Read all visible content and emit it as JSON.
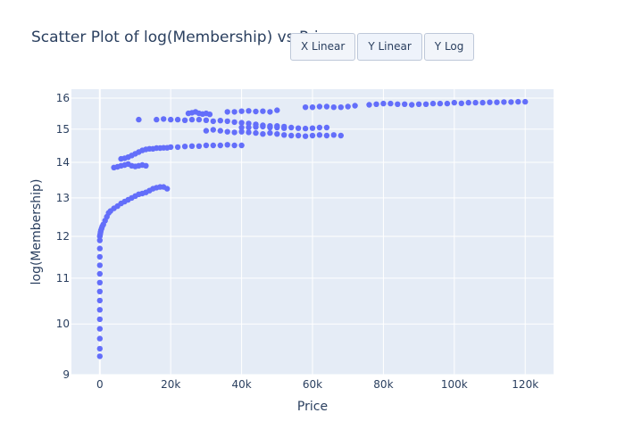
{
  "buttons": [
    {
      "label": "X Linear"
    },
    {
      "label": "Y Linear"
    },
    {
      "label": "Y Log"
    }
  ],
  "colors": {
    "plot_bg": "#e5ecf6",
    "grid": "#ffffff",
    "marker": "#636efa",
    "text": "#2a3f5f"
  },
  "chart_data": {
    "type": "scatter",
    "title": "Scatter Plot of log(Membership) vs Price",
    "xlabel": "Price",
    "ylabel": "log(Membership)",
    "xlim": [
      -8000,
      128000
    ],
    "ylim": [
      9,
      16.3
    ],
    "y_scale": "log",
    "grid": true,
    "x_ticks": [
      {
        "value": 0,
        "label": "0"
      },
      {
        "value": 20000,
        "label": "20k"
      },
      {
        "value": 40000,
        "label": "40k"
      },
      {
        "value": 60000,
        "label": "60k"
      },
      {
        "value": 80000,
        "label": "80k"
      },
      {
        "value": 100000,
        "label": "100k"
      },
      {
        "value": 120000,
        "label": "120k"
      }
    ],
    "y_ticks": [
      {
        "value": 9,
        "label": "9"
      },
      {
        "value": 10,
        "label": "10"
      },
      {
        "value": 11,
        "label": "11"
      },
      {
        "value": 12,
        "label": "12"
      },
      {
        "value": 13,
        "label": "13"
      },
      {
        "value": 14,
        "label": "14"
      },
      {
        "value": 15,
        "label": "15"
      },
      {
        "value": 16,
        "label": "16"
      }
    ],
    "series": [
      {
        "values_note": "",
        "x": [
          0,
          0,
          0,
          0,
          0,
          0,
          0,
          0,
          0,
          0,
          0,
          0,
          0,
          0,
          0,
          100,
          200,
          300,
          500,
          700,
          1000,
          1500,
          2000,
          2500,
          3000,
          4000,
          5000,
          6000,
          7000,
          8000,
          9000,
          10000,
          11000,
          12000,
          13000,
          14000,
          15000,
          16000,
          17000,
          18000,
          19000,
          4000,
          5000,
          6000,
          7000,
          8000,
          9000,
          10000,
          11000,
          12000,
          13000,
          6000,
          7000,
          8000,
          9000,
          10000,
          11000,
          12000,
          13000,
          14000,
          15000,
          16000,
          17000,
          18000,
          19000,
          20000,
          22000,
          24000,
          26000,
          28000,
          30000,
          32000,
          34000,
          36000,
          38000,
          40000,
          11000,
          16000,
          18000,
          20000,
          22000,
          24000,
          26000,
          28000,
          30000,
          32000,
          34000,
          36000,
          38000,
          40000,
          42000,
          44000,
          46000,
          48000,
          50000,
          52000,
          25000,
          26000,
          27000,
          28000,
          29000,
          30000,
          31000,
          36000,
          38000,
          40000,
          42000,
          44000,
          46000,
          48000,
          50000,
          30000,
          32000,
          34000,
          36000,
          38000,
          40000,
          42000,
          44000,
          46000,
          48000,
          50000,
          52000,
          54000,
          56000,
          58000,
          60000,
          62000,
          64000,
          66000,
          68000,
          40000,
          42000,
          44000,
          46000,
          48000,
          50000,
          52000,
          54000,
          56000,
          58000,
          60000,
          62000,
          64000,
          58000,
          60000,
          62000,
          64000,
          66000,
          68000,
          70000,
          72000,
          76000,
          78000,
          80000,
          82000,
          84000,
          86000,
          88000,
          90000,
          92000,
          94000,
          96000,
          98000,
          100000,
          102000,
          104000,
          106000,
          108000,
          110000,
          112000,
          114000,
          116000,
          118000,
          120000
        ],
        "y": [
          9.35,
          9.5,
          9.7,
          9.9,
          10.1,
          10.3,
          10.5,
          10.7,
          10.9,
          11.1,
          11.3,
          11.5,
          11.7,
          11.9,
          12.0,
          12.05,
          12.1,
          12.15,
          12.2,
          12.25,
          12.3,
          12.4,
          12.5,
          12.6,
          12.65,
          12.72,
          12.78,
          12.85,
          12.9,
          12.95,
          13.0,
          13.05,
          13.1,
          13.12,
          13.15,
          13.2,
          13.25,
          13.28,
          13.3,
          13.3,
          13.25,
          13.85,
          13.87,
          13.9,
          13.92,
          13.95,
          13.9,
          13.88,
          13.9,
          13.92,
          13.9,
          14.1,
          14.12,
          14.15,
          14.2,
          14.25,
          14.3,
          14.35,
          14.38,
          14.4,
          14.4,
          14.42,
          14.42,
          14.43,
          14.43,
          14.45,
          14.45,
          14.47,
          14.48,
          14.48,
          14.5,
          14.5,
          14.5,
          14.52,
          14.5,
          14.5,
          15.3,
          15.3,
          15.32,
          15.3,
          15.3,
          15.28,
          15.3,
          15.3,
          15.28,
          15.25,
          15.27,
          15.25,
          15.22,
          15.2,
          15.18,
          15.15,
          15.12,
          15.1,
          15.1,
          15.08,
          15.5,
          15.52,
          15.55,
          15.5,
          15.48,
          15.5,
          15.47,
          15.55,
          15.55,
          15.57,
          15.58,
          15.56,
          15.57,
          15.55,
          15.6,
          14.95,
          14.98,
          14.95,
          14.92,
          14.9,
          14.92,
          14.9,
          14.88,
          14.85,
          14.88,
          14.85,
          14.82,
          14.8,
          14.8,
          14.78,
          14.8,
          14.82,
          14.8,
          14.82,
          14.8,
          15.05,
          15.05,
          15.07,
          15.08,
          15.05,
          15.05,
          15.03,
          15.05,
          15.03,
          15.02,
          15.03,
          15.05,
          15.05,
          15.7,
          15.7,
          15.72,
          15.72,
          15.7,
          15.7,
          15.72,
          15.75,
          15.78,
          15.8,
          15.82,
          15.82,
          15.8,
          15.8,
          15.78,
          15.8,
          15.8,
          15.82,
          15.82,
          15.82,
          15.85,
          15.83,
          15.85,
          15.85,
          15.85,
          15.86,
          15.86,
          15.87,
          15.87,
          15.88,
          15.88
        ]
      }
    ]
  }
}
